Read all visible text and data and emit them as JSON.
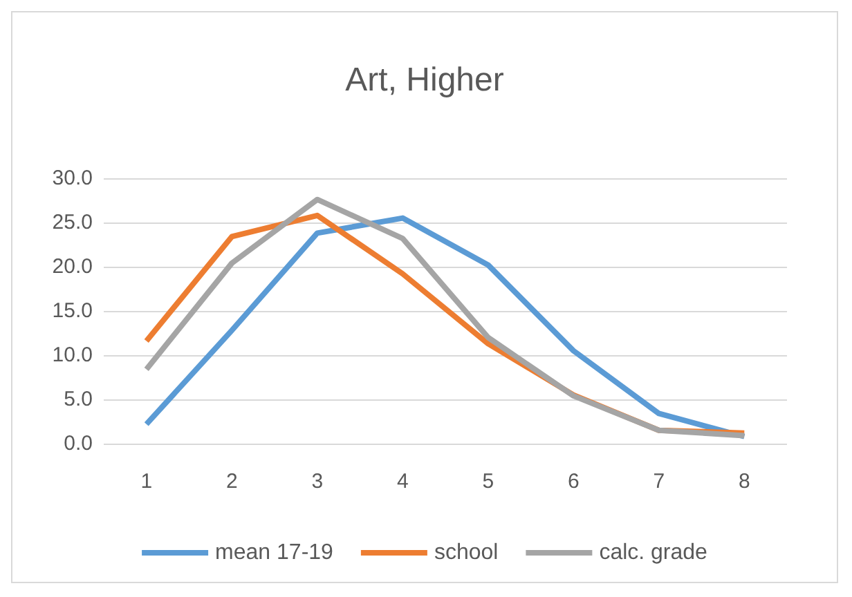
{
  "chart_data": {
    "type": "line",
    "title": "Art, Higher",
    "categories": [
      "1",
      "2",
      "3",
      "4",
      "5",
      "6",
      "7",
      "8"
    ],
    "series": [
      {
        "name": "mean 17-19",
        "color": "#5b9bd5",
        "values": [
          2.2,
          12.8,
          23.8,
          25.5,
          20.2,
          10.5,
          3.4,
          0.8
        ]
      },
      {
        "name": "school",
        "color": "#ed7d31",
        "values": [
          11.6,
          23.4,
          25.8,
          19.2,
          11.3,
          5.5,
          1.5,
          1.2
        ]
      },
      {
        "name": "calc. grade",
        "color": "#a5a5a5",
        "values": [
          8.4,
          20.4,
          27.6,
          23.2,
          12.0,
          5.4,
          1.5,
          0.9
        ]
      }
    ],
    "ylim": [
      0,
      30
    ],
    "yticks": [
      {
        "value": 0,
        "label": "0.0"
      },
      {
        "value": 5,
        "label": "5.0"
      },
      {
        "value": 10,
        "label": "10.0"
      },
      {
        "value": 15,
        "label": "15.0"
      },
      {
        "value": 20,
        "label": "20.0"
      },
      {
        "value": 25,
        "label": "25.0"
      },
      {
        "value": 30,
        "label": "30.0"
      }
    ],
    "grid": "y",
    "legend": "bottom",
    "marker": "none",
    "line_style": "solid"
  }
}
